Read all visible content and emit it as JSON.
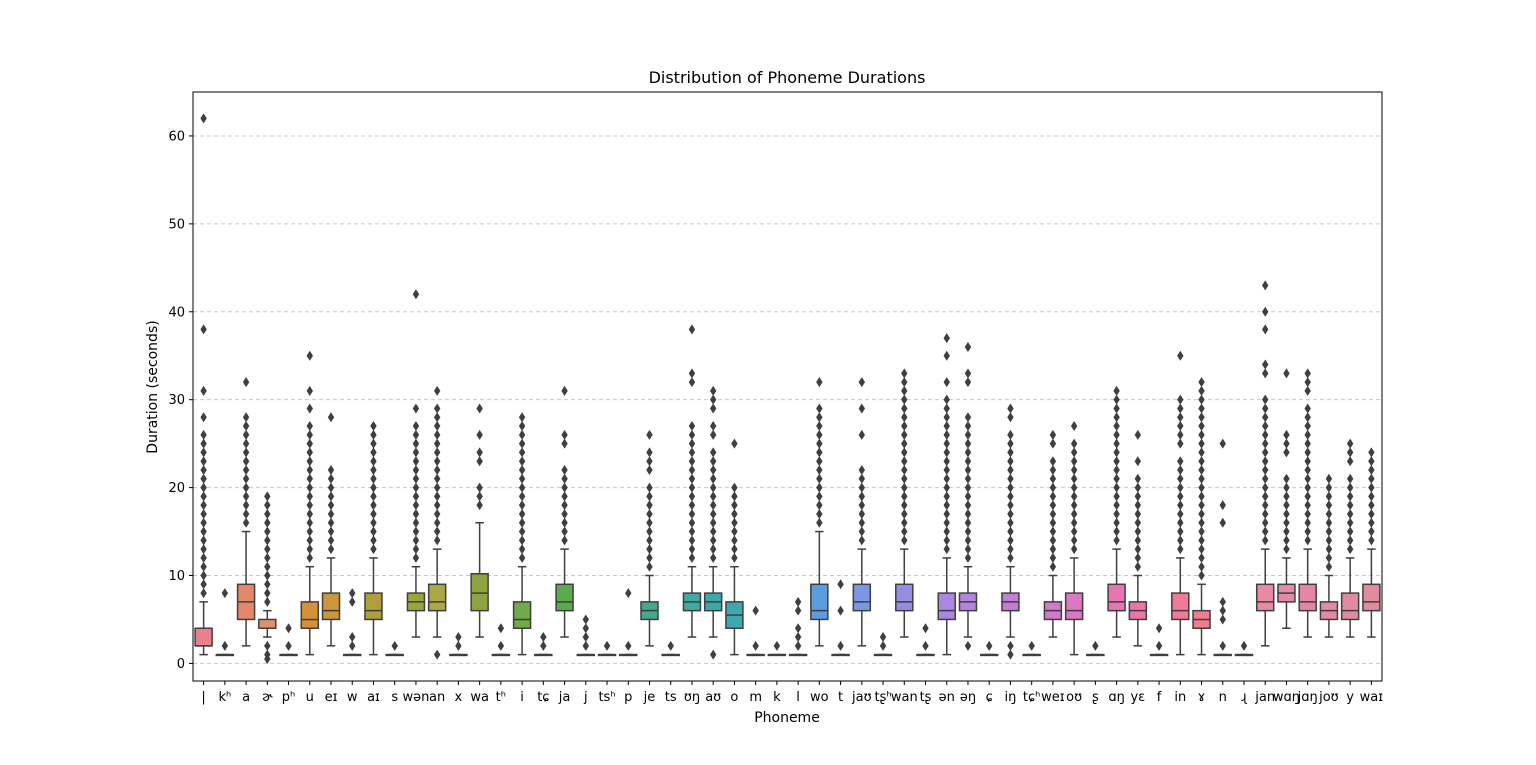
{
  "chart_data": {
    "type": "box",
    "title": "Distribution of Phoneme Durations",
    "xlabel": "Phoneme",
    "ylabel": "Duration (seconds)",
    "ylim": [
      -2,
      65
    ],
    "yticks": [
      0,
      10,
      20,
      30,
      40,
      50,
      60
    ],
    "grid": "y-dashed",
    "categories": [
      "|",
      "kʰ",
      "a",
      "ɚ",
      "pʰ",
      "u",
      "eɪ",
      "w",
      "aɪ",
      "s",
      "wən",
      "an",
      "x",
      "wa",
      "tʰ",
      "i",
      "tɕ",
      "ja",
      "j",
      "tsʰ",
      "p",
      "je",
      "ts",
      "ʊŋ",
      "aʊ",
      "o",
      "m",
      "k",
      "l",
      "wo",
      "t",
      "jaʊ",
      "tʂʰ",
      "wan",
      "tʂ",
      "ən",
      "əŋ",
      "ɕ",
      "iŋ",
      "tɕʰ",
      "weɪ",
      "oʊ",
      "ʂ",
      "ɑŋ",
      "yɛ",
      "f",
      "in",
      "ɤ",
      "n",
      "ɻ",
      "jan",
      "wɑŋ",
      "jɑŋ",
      "joʊ",
      "y",
      "waɪ"
    ],
    "colors": [
      "#e8818d",
      "#e7836b",
      "#e4876a",
      "#e0906d",
      "#d6975a",
      "#d59038",
      "#cc963d",
      "#bd9c3a",
      "#b09f3a",
      "#a4a43a",
      "#99a63a",
      "#aea746",
      "#9da642",
      "#8ea43e",
      "#7aaa3b",
      "#72a94a",
      "#65ab4a",
      "#58ac4e",
      "#4ea95e",
      "#4aab72",
      "#48ab82",
      "#45a98d",
      "#41aa98",
      "#3eaaa1",
      "#3ea8a9",
      "#3fa7b2",
      "#40a6bc",
      "#43a3c8",
      "#4d9fd4",
      "#5c9ddd",
      "#6b9ae0",
      "#7b96e2",
      "#8990e3",
      "#958de4",
      "#a08ae4",
      "#ab86e2",
      "#b283e0",
      "#bb80dc",
      "#c47dd7",
      "#cd7ad2",
      "#d678cc",
      "#dd76c4",
      "#e275bc",
      "#e875b3",
      "#ec76a9",
      "#ef78a0",
      "#f07a98",
      "#f07c91",
      "#ef7e8b",
      "#ee8087",
      "#e88aa3",
      "#e689a6",
      "#e686a5",
      "#e38ba2",
      "#e18ba0",
      "#de8d9e"
    ],
    "boxes": [
      {
        "q1": 2,
        "median": 2,
        "q3": 4,
        "wlo": 1,
        "whi": 7,
        "out_lo": [],
        "out_hi": [
          8,
          62,
          38,
          31,
          28,
          26,
          25,
          24,
          23,
          22,
          21,
          20,
          19,
          18,
          17,
          16,
          15,
          14,
          13,
          12,
          11,
          10,
          9
        ]
      },
      {
        "q1": 1,
        "median": 1,
        "q3": 1,
        "wlo": 1,
        "whi": 1,
        "out_lo": [],
        "out_hi": [
          2,
          8
        ]
      },
      {
        "q1": 5,
        "median": 7,
        "q3": 9,
        "wlo": 2,
        "whi": 15,
        "out_lo": [],
        "out_hi": [
          32,
          28,
          27,
          26,
          25,
          24,
          23,
          22,
          21,
          20,
          19,
          18,
          17,
          16
        ]
      },
      {
        "q1": 4,
        "median": 4,
        "q3": 5,
        "wlo": 3,
        "whi": 6,
        "out_lo": [
          0.5,
          1,
          2
        ],
        "out_hi": [
          19,
          18,
          17,
          16,
          15,
          14,
          13,
          12,
          11,
          10,
          9,
          8,
          7
        ]
      },
      {
        "q1": 1,
        "median": 1,
        "q3": 1,
        "wlo": 1,
        "whi": 1,
        "out_lo": [],
        "out_hi": [
          2,
          4
        ]
      },
      {
        "q1": 4,
        "median": 5,
        "q3": 7,
        "wlo": 1,
        "whi": 11,
        "out_lo": [],
        "out_hi": [
          35,
          31,
          29,
          27,
          26,
          25,
          24,
          23,
          22,
          21,
          20,
          19,
          18,
          17,
          16,
          15,
          14,
          13,
          12
        ]
      },
      {
        "q1": 5,
        "median": 6,
        "q3": 8,
        "wlo": 2,
        "whi": 12,
        "out_lo": [],
        "out_hi": [
          28,
          22,
          21,
          20,
          19,
          18,
          17,
          16,
          15,
          14,
          13
        ]
      },
      {
        "q1": 1,
        "median": 1,
        "q3": 1,
        "wlo": 1,
        "whi": 1,
        "out_lo": [],
        "out_hi": [
          2,
          3,
          7,
          8
        ]
      },
      {
        "q1": 5,
        "median": 6,
        "q3": 8,
        "wlo": 1,
        "whi": 12,
        "out_lo": [],
        "out_hi": [
          27,
          26,
          25,
          24,
          23,
          22,
          21,
          20,
          19,
          18,
          17,
          16,
          15,
          14,
          13
        ]
      },
      {
        "q1": 1,
        "median": 1,
        "q3": 1,
        "wlo": 1,
        "whi": 1,
        "out_lo": [],
        "out_hi": [
          2
        ]
      },
      {
        "q1": 6,
        "median": 7,
        "q3": 8,
        "wlo": 3,
        "whi": 11,
        "out_lo": [],
        "out_hi": [
          42,
          29,
          27,
          26,
          25,
          24,
          23,
          22,
          21,
          20,
          19,
          18,
          17,
          16,
          15,
          14,
          13,
          12
        ]
      },
      {
        "q1": 6,
        "median": 7,
        "q3": 9,
        "wlo": 3,
        "whi": 13,
        "out_lo": [
          1
        ],
        "out_hi": [
          31,
          29,
          28,
          27,
          26,
          25,
          24,
          23,
          22,
          21,
          20,
          19,
          18,
          17,
          16,
          15,
          14
        ]
      },
      {
        "q1": 1,
        "median": 1,
        "q3": 1,
        "wlo": 1,
        "whi": 1,
        "out_lo": [],
        "out_hi": [
          2,
          3
        ]
      },
      {
        "q1": 6,
        "median": 8,
        "q3": 10.2,
        "wlo": 3,
        "whi": 16,
        "out_lo": [],
        "out_hi": [
          29,
          26,
          24,
          23,
          20,
          19,
          18
        ]
      },
      {
        "q1": 1,
        "median": 1,
        "q3": 1,
        "wlo": 1,
        "whi": 1,
        "out_lo": [],
        "out_hi": [
          2,
          4
        ]
      },
      {
        "q1": 4,
        "median": 5,
        "q3": 7,
        "wlo": 1,
        "whi": 11,
        "out_lo": [],
        "out_hi": [
          28,
          27,
          26,
          25,
          24,
          23,
          22,
          21,
          20,
          19,
          18,
          17,
          16,
          15,
          14,
          13,
          12
        ]
      },
      {
        "q1": 1,
        "median": 1,
        "q3": 1,
        "wlo": 1,
        "whi": 1,
        "out_lo": [],
        "out_hi": [
          2,
          3
        ]
      },
      {
        "q1": 6,
        "median": 7,
        "q3": 9,
        "wlo": 3,
        "whi": 13,
        "out_lo": [],
        "out_hi": [
          31,
          26,
          25,
          22,
          21,
          20,
          19,
          18,
          17,
          16,
          15,
          14
        ]
      },
      {
        "q1": 1,
        "median": 1,
        "q3": 1,
        "wlo": 1,
        "whi": 1,
        "out_lo": [],
        "out_hi": [
          2,
          3,
          4,
          5
        ]
      },
      {
        "q1": 1,
        "median": 1,
        "q3": 1,
        "wlo": 1,
        "whi": 1,
        "out_lo": [],
        "out_hi": [
          2
        ]
      },
      {
        "q1": 1,
        "median": 1,
        "q3": 1,
        "wlo": 1,
        "whi": 1,
        "out_lo": [],
        "out_hi": [
          2,
          8
        ]
      },
      {
        "q1": 5,
        "median": 6,
        "q3": 7,
        "wlo": 2,
        "whi": 10,
        "out_lo": [],
        "out_hi": [
          26,
          24,
          23,
          22,
          20,
          19,
          18,
          17,
          16,
          15,
          14,
          13,
          12,
          11
        ]
      },
      {
        "q1": 1,
        "median": 1,
        "q3": 1,
        "wlo": 1,
        "whi": 1,
        "out_lo": [],
        "out_hi": [
          2
        ]
      },
      {
        "q1": 6,
        "median": 7,
        "q3": 8,
        "wlo": 3,
        "whi": 11,
        "out_lo": [],
        "out_hi": [
          38,
          33,
          32,
          27,
          26,
          25,
          24,
          23,
          22,
          21,
          20,
          19,
          18,
          17,
          16,
          15,
          14,
          13,
          12
        ]
      },
      {
        "q1": 6,
        "median": 7,
        "q3": 8,
        "wlo": 3,
        "whi": 11,
        "out_lo": [
          1
        ],
        "out_hi": [
          31,
          30,
          29,
          27,
          26,
          24,
          23,
          22,
          21,
          20,
          19,
          18,
          17,
          16,
          15,
          14,
          13,
          12
        ]
      },
      {
        "q1": 4,
        "median": 5.5,
        "q3": 7,
        "wlo": 1,
        "whi": 11,
        "out_lo": [],
        "out_hi": [
          25,
          20,
          19,
          18,
          17,
          16,
          15,
          14,
          13,
          12
        ]
      },
      {
        "q1": 1,
        "median": 1,
        "q3": 1,
        "wlo": 1,
        "whi": 1,
        "out_lo": [],
        "out_hi": [
          2,
          6
        ]
      },
      {
        "q1": 1,
        "median": 1,
        "q3": 1,
        "wlo": 1,
        "whi": 1,
        "out_lo": [],
        "out_hi": [
          2
        ]
      },
      {
        "q1": 1,
        "median": 1,
        "q3": 1,
        "wlo": 1,
        "whi": 1,
        "out_lo": [],
        "out_hi": [
          2,
          3,
          4,
          6,
          7
        ]
      },
      {
        "q1": 5,
        "median": 6,
        "q3": 9,
        "wlo": 2,
        "whi": 15,
        "out_lo": [],
        "out_hi": [
          32,
          29,
          28,
          27,
          26,
          25,
          24,
          23,
          22,
          21,
          20,
          19,
          18,
          17,
          16
        ]
      },
      {
        "q1": 1,
        "median": 1,
        "q3": 1,
        "wlo": 1,
        "whi": 1,
        "out_lo": [],
        "out_hi": [
          2,
          6,
          9
        ]
      },
      {
        "q1": 6,
        "median": 7,
        "q3": 9,
        "wlo": 2,
        "whi": 13,
        "out_lo": [],
        "out_hi": [
          32,
          29,
          26,
          22,
          21,
          20,
          19,
          18,
          17,
          16,
          15,
          14
        ]
      },
      {
        "q1": 1,
        "median": 1,
        "q3": 1,
        "wlo": 1,
        "whi": 1,
        "out_lo": [],
        "out_hi": [
          2,
          3
        ]
      },
      {
        "q1": 6,
        "median": 7,
        "q3": 9,
        "wlo": 3,
        "whi": 13,
        "out_lo": [],
        "out_hi": [
          33,
          32,
          31,
          30,
          29,
          28,
          27,
          26,
          25,
          24,
          23,
          22,
          21,
          20,
          19,
          18,
          17,
          16,
          15,
          14
        ]
      },
      {
        "q1": 1,
        "median": 1,
        "q3": 1,
        "wlo": 1,
        "whi": 1,
        "out_lo": [],
        "out_hi": [
          2,
          4
        ]
      },
      {
        "q1": 5,
        "median": 6,
        "q3": 8,
        "wlo": 1,
        "whi": 12,
        "out_lo": [],
        "out_hi": [
          37,
          35,
          32,
          30,
          29,
          28,
          27,
          26,
          25,
          24,
          23,
          22,
          21,
          20,
          19,
          18,
          17,
          16,
          15,
          14,
          13
        ]
      },
      {
        "q1": 6,
        "median": 7,
        "q3": 8,
        "wlo": 3,
        "whi": 11,
        "out_lo": [
          2
        ],
        "out_hi": [
          36,
          33,
          32,
          28,
          27,
          26,
          25,
          24,
          23,
          22,
          21,
          20,
          19,
          18,
          17,
          16,
          15,
          14,
          13,
          12
        ]
      },
      {
        "q1": 1,
        "median": 1,
        "q3": 1,
        "wlo": 1,
        "whi": 1,
        "out_lo": [],
        "out_hi": [
          2
        ]
      },
      {
        "q1": 6,
        "median": 7,
        "q3": 8,
        "wlo": 3,
        "whi": 11,
        "out_lo": [
          1,
          2
        ],
        "out_hi": [
          29,
          28,
          26,
          25,
          24,
          23,
          22,
          21,
          20,
          19,
          18,
          17,
          16,
          15,
          14,
          13,
          12
        ]
      },
      {
        "q1": 1,
        "median": 1,
        "q3": 1,
        "wlo": 1,
        "whi": 1,
        "out_lo": [],
        "out_hi": [
          2
        ]
      },
      {
        "q1": 5,
        "median": 6,
        "q3": 7,
        "wlo": 3,
        "whi": 10,
        "out_lo": [],
        "out_hi": [
          26,
          25,
          23,
          22,
          21,
          20,
          19,
          18,
          17,
          16,
          15,
          14,
          13,
          12,
          11
        ]
      },
      {
        "q1": 5,
        "median": 6,
        "q3": 8,
        "wlo": 1,
        "whi": 12,
        "out_lo": [],
        "out_hi": [
          27,
          25,
          24,
          23,
          22,
          21,
          20,
          19,
          18,
          17,
          16,
          15,
          14,
          13
        ]
      },
      {
        "q1": 1,
        "median": 1,
        "q3": 1,
        "wlo": 1,
        "whi": 1,
        "out_lo": [],
        "out_hi": [
          2
        ]
      },
      {
        "q1": 6,
        "median": 7,
        "q3": 9,
        "wlo": 3,
        "whi": 13,
        "out_lo": [],
        "out_hi": [
          31,
          30,
          29,
          28,
          27,
          26,
          25,
          24,
          23,
          22,
          21,
          20,
          19,
          18,
          17,
          16,
          15,
          14
        ]
      },
      {
        "q1": 5,
        "median": 6,
        "q3": 7,
        "wlo": 2,
        "whi": 10,
        "out_lo": [],
        "out_hi": [
          26,
          23,
          21,
          20,
          19,
          18,
          17,
          16,
          15,
          14,
          13,
          12,
          11
        ]
      },
      {
        "q1": 1,
        "median": 1,
        "q3": 1,
        "wlo": 1,
        "whi": 1,
        "out_lo": [],
        "out_hi": [
          2,
          4
        ]
      },
      {
        "q1": 5,
        "median": 6,
        "q3": 8,
        "wlo": 1,
        "whi": 12,
        "out_lo": [],
        "out_hi": [
          35,
          30,
          29,
          28,
          27,
          26,
          25,
          23,
          22,
          21,
          20,
          19,
          18,
          17,
          16,
          15,
          14,
          13
        ]
      },
      {
        "q1": 4,
        "median": 5,
        "q3": 6,
        "wlo": 1,
        "whi": 9,
        "out_lo": [],
        "out_hi": [
          32,
          31,
          30,
          29,
          28,
          27,
          26,
          25,
          24,
          23,
          22,
          21,
          20,
          19,
          18,
          17,
          16,
          15,
          14,
          13,
          12,
          11,
          10
        ]
      },
      {
        "q1": 1,
        "median": 1,
        "q3": 1,
        "wlo": 1,
        "whi": 1,
        "out_lo": [],
        "out_hi": [
          2,
          5,
          6,
          7,
          16,
          18,
          25
        ]
      },
      {
        "q1": 1,
        "median": 1,
        "q3": 1,
        "wlo": 1,
        "whi": 1,
        "out_lo": [],
        "out_hi": [
          2
        ]
      },
      {
        "q1": 6,
        "median": 7,
        "q3": 9,
        "wlo": 2,
        "whi": 13,
        "out_lo": [],
        "out_hi": [
          43,
          40,
          38,
          34,
          33,
          30,
          29,
          28,
          27,
          26,
          25,
          24,
          23,
          22,
          21,
          20,
          19,
          18,
          17,
          16,
          15,
          14
        ]
      },
      {
        "q1": 7,
        "median": 8,
        "q3": 9,
        "wlo": 4,
        "whi": 12,
        "out_lo": [],
        "out_hi": [
          33,
          26,
          25,
          24,
          21,
          20,
          19,
          18,
          17,
          16,
          15,
          14,
          13
        ]
      },
      {
        "q1": 6,
        "median": 7,
        "q3": 9,
        "wlo": 3,
        "whi": 13,
        "out_lo": [],
        "out_hi": [
          33,
          32,
          31,
          29,
          28,
          27,
          26,
          25,
          24,
          23,
          22,
          21,
          20,
          19,
          18,
          17,
          16,
          15,
          14
        ]
      },
      {
        "q1": 5,
        "median": 6,
        "q3": 7,
        "wlo": 3,
        "whi": 10,
        "out_lo": [],
        "out_hi": [
          21,
          20,
          19,
          18,
          17,
          16,
          15,
          14,
          13,
          12,
          11
        ]
      },
      {
        "q1": 5,
        "median": 6,
        "q3": 8,
        "wlo": 3,
        "whi": 12,
        "out_lo": [],
        "out_hi": [
          25,
          24,
          23,
          21,
          20,
          19,
          18,
          17,
          16,
          15,
          14,
          13
        ]
      },
      {
        "q1": 6,
        "median": 7,
        "q3": 9,
        "wlo": 3,
        "whi": 13,
        "out_lo": [],
        "out_hi": [
          24,
          23,
          22,
          21,
          20,
          19,
          18,
          17,
          16,
          15,
          14
        ]
      }
    ]
  }
}
